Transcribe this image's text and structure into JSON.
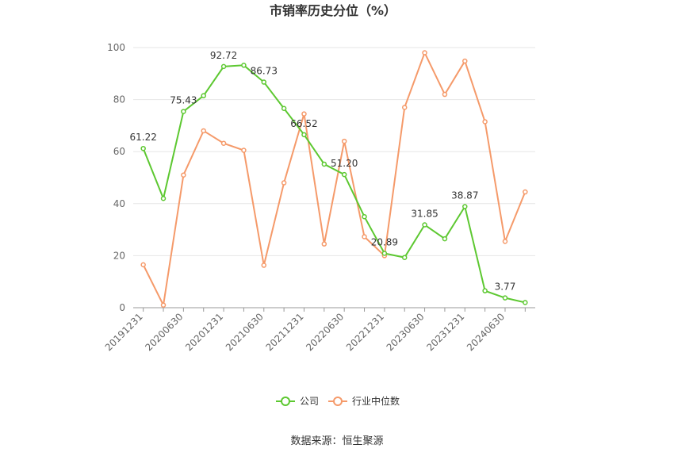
{
  "chart_data": {
    "type": "line",
    "title": "市销率历史分位（%）",
    "source": "数据来源：恒生聚源",
    "ylim": [
      0,
      100
    ],
    "yticks": [
      0,
      20,
      40,
      60,
      80,
      100
    ],
    "grid": true,
    "legend_position": "bottom",
    "x": [
      "20191231",
      "20200331",
      "20200630",
      "20200930",
      "20201231",
      "20210331",
      "20210630",
      "20210930",
      "20211231",
      "20220331",
      "20220630",
      "20220930",
      "20221231",
      "20230331",
      "20230630",
      "20230930",
      "20231231",
      "20240331",
      "20240630",
      "20240930"
    ],
    "x_tick_labels": [
      "20191231",
      "20200630",
      "20201231",
      "20210630",
      "20211231",
      "20220630",
      "20221231",
      "20230630",
      "20231231",
      "20240630"
    ],
    "series": [
      {
        "name": "公司",
        "color": "#5dc831",
        "values": [
          61.22,
          42,
          75.43,
          81.5,
          92.72,
          93.2,
          86.73,
          76.6,
          66.52,
          55.2,
          51.2,
          35,
          20.89,
          19.3,
          31.85,
          26.5,
          38.87,
          6.5,
          3.77,
          2.0
        ],
        "labels": {
          "0": "61.22",
          "2": "75.43",
          "4": "92.72",
          "6": "86.73",
          "8": "66.52",
          "10": "51.20",
          "12": "20.89",
          "14": "31.85",
          "16": "38.87",
          "18": "3.77"
        }
      },
      {
        "name": "行业中位数",
        "color": "#f59a6a",
        "values": [
          16.5,
          1,
          51,
          68,
          63.2,
          60.5,
          16.3,
          48,
          74.5,
          24.5,
          64,
          27.3,
          20,
          77,
          98,
          82,
          94.8,
          71.5,
          25.5,
          44.5
        ]
      }
    ]
  }
}
